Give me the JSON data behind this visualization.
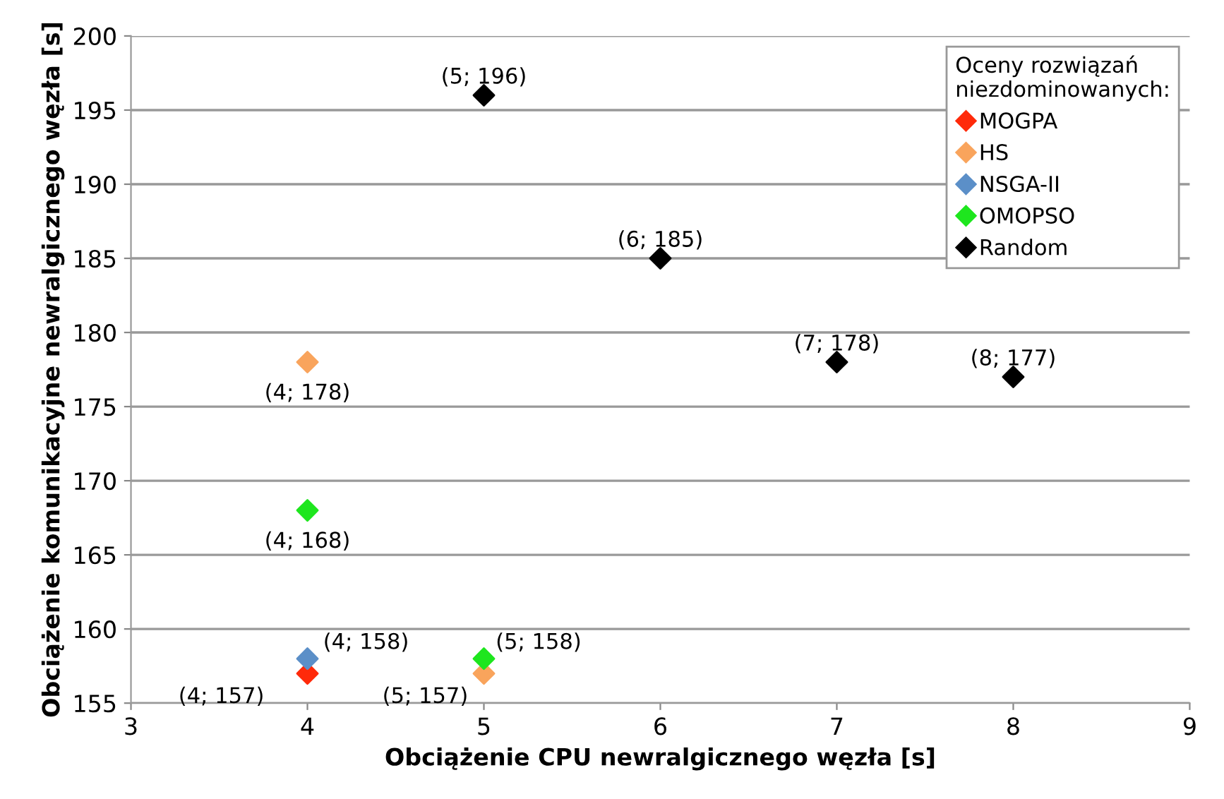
{
  "chart_data": {
    "type": "scatter",
    "xlabel": "Obciążenie CPU newralgicznego węzła [s]",
    "ylabel": "Obciążenie komunikacyjne newralgicznego węzła [s]",
    "legend_title": "Oceny rozwiązań\nniezdominowanych:",
    "series": [
      {
        "name": "MOGPA",
        "color": "#ff2a0a",
        "x": [
          4
        ],
        "values": [
          157
        ],
        "value_labels": [
          "(4; 157)"
        ]
      },
      {
        "name": "HS",
        "color": "#f9a45c",
        "x": [
          4,
          5
        ],
        "values": [
          178,
          157
        ],
        "value_labels": [
          "(4; 178)",
          "(5; 157)"
        ]
      },
      {
        "name": "NSGA-II",
        "color": "#5b8fc8",
        "x": [
          4
        ],
        "values": [
          158
        ],
        "value_labels": [
          "(4; 158)"
        ]
      },
      {
        "name": "OMOPSO",
        "color": "#1ee61e",
        "x": [
          4,
          5
        ],
        "values": [
          168,
          158
        ],
        "value_labels": [
          "(4; 168)",
          "(5; 158)"
        ]
      },
      {
        "name": "Random",
        "color": "#000000",
        "x": [
          5,
          6,
          7,
          8
        ],
        "values": [
          196,
          185,
          178,
          177
        ],
        "value_labels": [
          "(5; 196)",
          "(6; 185)",
          "(7; 178)",
          "(8; 177)"
        ]
      }
    ],
    "xlim": [
      3,
      9
    ],
    "xticks": [
      3,
      4,
      5,
      6,
      7,
      8,
      9
    ],
    "ylim": [
      155,
      200
    ],
    "yticks": [
      155,
      160,
      165,
      170,
      175,
      180,
      185,
      190,
      195,
      200
    ],
    "grid": "y",
    "legend": "top right",
    "marker": "diamond"
  }
}
